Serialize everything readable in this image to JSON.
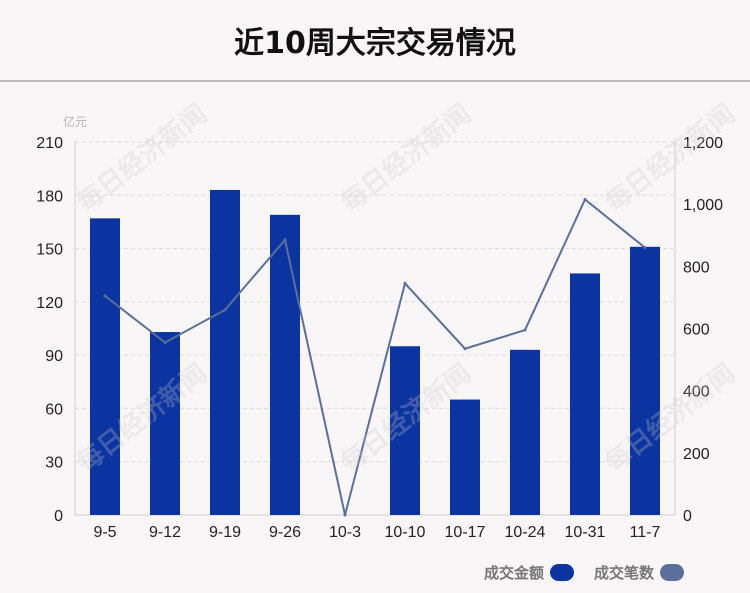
{
  "title": "近10周大宗交易情况",
  "chart_data": {
    "type": "bar",
    "categories": [
      "9-5",
      "9-12",
      "9-19",
      "9-26",
      "10-3",
      "10-10",
      "10-17",
      "10-24",
      "10-31",
      "11-7"
    ],
    "y_unit_label": "亿元",
    "ylim_left": [
      0,
      210
    ],
    "yticks_left": [
      0,
      30,
      60,
      90,
      120,
      150,
      180,
      210
    ],
    "ylim_right": [
      0,
      1200
    ],
    "yticks_right": [
      0,
      200,
      400,
      600,
      800,
      1000,
      1200
    ],
    "yticks_right_labels": [
      "0",
      "200",
      "400",
      "600",
      "800",
      "1,000",
      "1,200"
    ],
    "grid": true,
    "legend_position": "bottom-right",
    "series": [
      {
        "name": "成交金额",
        "type": "bar",
        "axis": "left",
        "color": "#0c34a0",
        "values": [
          167,
          103,
          183,
          169,
          0,
          95,
          65,
          93,
          136,
          151
        ]
      },
      {
        "name": "成交笔数",
        "type": "line",
        "axis": "right",
        "color": "#5b6f9a",
        "values": [
          705,
          555,
          660,
          885,
          0,
          745,
          535,
          595,
          1015,
          860
        ]
      }
    ]
  },
  "watermark_text": "每日经济新闻",
  "colors": {
    "bar": "#0c34a0",
    "line": "#5b6f9a",
    "grid": "#dcdcdc",
    "axis": "#cfcfcf",
    "background": "#f8f6f7"
  }
}
